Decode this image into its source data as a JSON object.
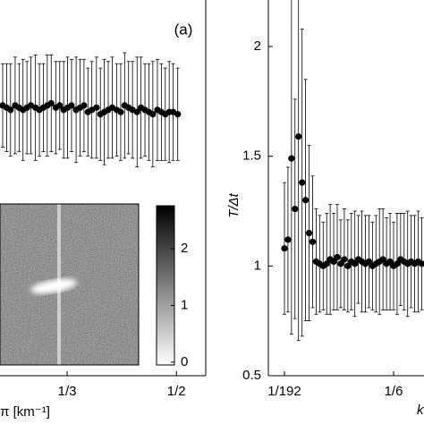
{
  "chart_data": [
    {
      "type": "scatter",
      "annotation": "(a)",
      "x_label": "π [km⁻¹]",
      "x": [
        0.235,
        0.241,
        0.247,
        0.254,
        0.26,
        0.266,
        0.272,
        0.278,
        0.285,
        0.291,
        0.297,
        0.303,
        0.309,
        0.316,
        0.322,
        0.328,
        0.334,
        0.34,
        0.347,
        0.353,
        0.359,
        0.365,
        0.371,
        0.378,
        0.384,
        0.39,
        0.396,
        0.402,
        0.409,
        0.415,
        0.421,
        0.427,
        0.433,
        0.44,
        0.446,
        0.452,
        0.458,
        0.464,
        0.471,
        0.477,
        0.483,
        0.489,
        0.495,
        0.502
      ],
      "values": [
        1.73,
        1.72,
        1.71,
        1.73,
        1.72,
        1.71,
        1.72,
        1.73,
        1.72,
        1.71,
        1.72,
        1.73,
        1.74,
        1.72,
        1.73,
        1.71,
        1.72,
        1.73,
        1.71,
        1.72,
        1.73,
        1.7,
        1.71,
        1.72,
        1.69,
        1.7,
        1.71,
        1.72,
        1.71,
        1.7,
        1.73,
        1.72,
        1.71,
        1.7,
        1.72,
        1.71,
        1.7,
        1.69,
        1.71,
        1.7,
        1.69,
        1.7,
        1.7,
        1.69
      ],
      "errors": [
        0.19,
        0.2,
        0.21,
        0.22,
        0.2,
        0.23,
        0.21,
        0.22,
        0.24,
        0.21,
        0.2,
        0.23,
        0.22,
        0.21,
        0.2,
        0.22,
        0.23,
        0.21,
        0.24,
        0.22,
        0.21,
        0.2,
        0.22,
        0.23,
        0.21,
        0.24,
        0.22,
        0.23,
        0.21,
        0.22,
        0.24,
        0.21,
        0.22,
        0.25,
        0.23,
        0.21,
        0.22,
        0.24,
        0.23,
        0.22,
        0.21,
        0.23,
        0.22,
        0.21
      ],
      "xlim": [
        0.2309,
        0.5447
      ],
      "ylim": [
        0.5,
        2.21
      ],
      "xticks": [
        {
          "value": 0.3333,
          "label": "1/3"
        },
        {
          "value": 0.5,
          "label": "1/2"
        }
      ],
      "colorbar": {
        "lim": [
          -0.05,
          2.76
        ],
        "ticks": [
          0,
          1,
          2
        ]
      }
    },
    {
      "type": "scatter",
      "y_label": "T/Δt",
      "x_label": "k",
      "x": [
        0.0052,
        0.0104,
        0.0156,
        0.0208,
        0.026,
        0.0313,
        0.0365,
        0.0417,
        0.0469,
        0.0521,
        0.0573,
        0.0625,
        0.0677,
        0.0729,
        0.0781,
        0.0833,
        0.0885,
        0.0938,
        0.099,
        0.1042,
        0.1094,
        0.1146,
        0.1198,
        0.125,
        0.1302,
        0.1354,
        0.1406,
        0.1458,
        0.151,
        0.1563,
        0.1615,
        0.1667,
        0.1719,
        0.1771,
        0.1823,
        0.1875,
        0.1927,
        0.1979,
        0.2031,
        0.2083
      ],
      "values": [
        1.08,
        1.12,
        1.49,
        1.26,
        1.59,
        1.38,
        1.3,
        1.15,
        1.11,
        1.02,
        1.01,
        1.0,
        1.01,
        1.03,
        1.02,
        1.04,
        1.01,
        1.03,
        1.0,
        1.02,
        1.01,
        1.03,
        1.02,
        1.01,
        1.02,
        1.0,
        1.01,
        1.02,
        1.03,
        1.01,
        1.02,
        1.0,
        1.01,
        1.03,
        1.02,
        1.01,
        1.02,
        1.01,
        1.02,
        1.01
      ],
      "errors": [
        0.3,
        0.33,
        0.8,
        0.5,
        0.93,
        0.7,
        0.55,
        0.4,
        0.3,
        0.24,
        0.22,
        0.2,
        0.23,
        0.25,
        0.22,
        0.24,
        0.2,
        0.23,
        0.21,
        0.22,
        0.24,
        0.2,
        0.23,
        0.22,
        0.21,
        0.2,
        0.22,
        0.24,
        0.23,
        0.21,
        0.22,
        0.2,
        0.23,
        0.21,
        0.22,
        0.24,
        0.21,
        0.22,
        0.23,
        0.21
      ],
      "xlim": [
        -0.0186,
        0.2117
      ],
      "ylim": [
        0.5,
        2.212
      ],
      "xticks": [
        {
          "value": 0.0052,
          "label": "1/192"
        },
        {
          "value": 0.1667,
          "label": "1/6"
        }
      ],
      "yticks": [
        0.5,
        1,
        1.5,
        2
      ]
    }
  ]
}
